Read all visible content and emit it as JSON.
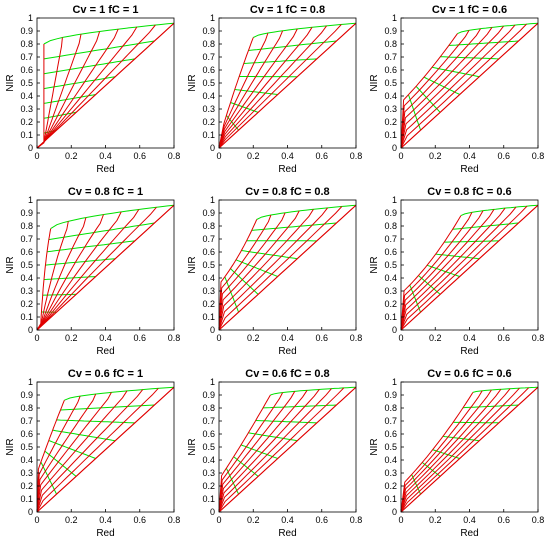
{
  "colors": {
    "green_lines": "#00e000",
    "red_lines": "#e00000",
    "axes": "#000000"
  },
  "chart_data": [
    {
      "type": "line",
      "title": "Cv = 1     fC = 1",
      "xlabel": "Red",
      "ylabel": "NIR",
      "xlim": [
        0,
        0.8
      ],
      "ylim": [
        0,
        1
      ],
      "xticks": [
        "0",
        "0.2",
        "0.4",
        "0.6",
        "0.8"
      ],
      "yticks": [
        "0",
        "0.1",
        "0.2",
        "0.3",
        "0.4",
        "0.5",
        "0.6",
        "0.7",
        "0.8",
        "0.9",
        "1"
      ],
      "soil_line": [
        [
          0.0,
          0.0
        ],
        [
          0.8,
          0.96
        ]
      ],
      "canopy_edge": [
        [
          0.04,
          0.0
        ],
        [
          0.04,
          0.4
        ],
        [
          0.04,
          0.8
        ]
      ],
      "top_point": [
        0.8,
        0.96
      ],
      "grid_n": 7
    },
    {
      "type": "line",
      "title": "Cv = 1     fC = 0.8",
      "xlabel": "Red",
      "ylabel": "NIR",
      "xlim": [
        0,
        0.8
      ],
      "ylim": [
        0,
        1
      ],
      "xticks": [
        "0",
        "0.2",
        "0.4",
        "0.6",
        "0.8"
      ],
      "yticks": [
        "0",
        "0.1",
        "0.2",
        "0.3",
        "0.4",
        "0.5",
        "0.6",
        "0.7",
        "0.8",
        "0.9",
        "1"
      ],
      "soil_line": [
        [
          0.0,
          0.0
        ],
        [
          0.8,
          0.96
        ]
      ],
      "canopy_edge": [
        [
          0.02,
          0.15
        ],
        [
          0.1,
          0.5
        ],
        [
          0.2,
          0.85
        ]
      ],
      "top_point": [
        0.8,
        0.96
      ],
      "grid_n": 7
    },
    {
      "type": "line",
      "title": "Cv = 1     fC = 0.6",
      "xlabel": "Red",
      "ylabel": "NIR",
      "xlim": [
        0,
        0.8
      ],
      "ylim": [
        0,
        1
      ],
      "xticks": [
        "0",
        "0.2",
        "0.4",
        "0.6",
        "0.8"
      ],
      "yticks": [
        "0",
        "0.1",
        "0.2",
        "0.3",
        "0.4",
        "0.5",
        "0.6",
        "0.7",
        "0.8",
        "0.9",
        "1"
      ],
      "soil_line": [
        [
          0.0,
          0.0
        ],
        [
          0.8,
          0.96
        ]
      ],
      "canopy_edge": [
        [
          0.0,
          0.35
        ],
        [
          0.15,
          0.55
        ],
        [
          0.33,
          0.88
        ]
      ],
      "top_point": [
        0.8,
        0.96
      ],
      "grid_n": 7
    },
    {
      "type": "line",
      "title": "Cv = 0.8     fC = 1",
      "xlabel": "Red",
      "ylabel": "NIR",
      "xlim": [
        0,
        0.8
      ],
      "ylim": [
        0,
        1
      ],
      "xticks": [
        "0",
        "0.2",
        "0.4",
        "0.6",
        "0.8"
      ],
      "yticks": [
        "0",
        "0.1",
        "0.2",
        "0.3",
        "0.4",
        "0.5",
        "0.6",
        "0.7",
        "0.8",
        "0.9",
        "1"
      ],
      "soil_line": [
        [
          0.0,
          0.0
        ],
        [
          0.8,
          0.96
        ]
      ],
      "canopy_edge": [
        [
          0.02,
          0.0
        ],
        [
          0.04,
          0.5
        ],
        [
          0.08,
          0.78
        ]
      ],
      "top_point": [
        0.8,
        0.96
      ],
      "grid_n": 7
    },
    {
      "type": "line",
      "title": "Cv = 0.8     fC = 0.8",
      "xlabel": "Red",
      "ylabel": "NIR",
      "xlim": [
        0,
        0.8
      ],
      "ylim": [
        0,
        1
      ],
      "xticks": [
        "0",
        "0.2",
        "0.4",
        "0.6",
        "0.8"
      ],
      "yticks": [
        "0",
        "0.1",
        "0.2",
        "0.3",
        "0.4",
        "0.5",
        "0.6",
        "0.7",
        "0.8",
        "0.9",
        "1"
      ],
      "soil_line": [
        [
          0.0,
          0.0
        ],
        [
          0.8,
          0.96
        ]
      ],
      "canopy_edge": [
        [
          0.0,
          0.35
        ],
        [
          0.12,
          0.55
        ],
        [
          0.22,
          0.85
        ]
      ],
      "top_point": [
        0.8,
        0.96
      ],
      "grid_n": 7
    },
    {
      "type": "line",
      "title": "Cv = 0.8     fC = 0.6",
      "xlabel": "Red",
      "ylabel": "NIR",
      "xlim": [
        0,
        0.8
      ],
      "ylim": [
        0,
        1
      ],
      "xticks": [
        "0",
        "0.2",
        "0.4",
        "0.6",
        "0.8"
      ],
      "yticks": [
        "0",
        "0.1",
        "0.2",
        "0.3",
        "0.4",
        "0.5",
        "0.6",
        "0.7",
        "0.8",
        "0.9",
        "1"
      ],
      "soil_line": [
        [
          0.0,
          0.0
        ],
        [
          0.8,
          0.96
        ]
      ],
      "canopy_edge": [
        [
          0.0,
          0.28
        ],
        [
          0.18,
          0.5
        ],
        [
          0.35,
          0.88
        ]
      ],
      "top_point": [
        0.8,
        0.96
      ],
      "grid_n": 7
    },
    {
      "type": "line",
      "title": "Cv = 0.6     fC = 1",
      "xlabel": "Red",
      "ylabel": "NIR",
      "xlim": [
        0,
        0.8
      ],
      "ylim": [
        0,
        1
      ],
      "xticks": [
        "0",
        "0.2",
        "0.4",
        "0.6",
        "0.8"
      ],
      "yticks": [
        "0",
        "0.1",
        "0.2",
        "0.3",
        "0.4",
        "0.5",
        "0.6",
        "0.7",
        "0.8",
        "0.9",
        "1"
      ],
      "soil_line": [
        [
          0.0,
          0.0
        ],
        [
          0.8,
          0.96
        ]
      ],
      "canopy_edge": [
        [
          0.0,
          0.3
        ],
        [
          0.08,
          0.6
        ],
        [
          0.16,
          0.86
        ]
      ],
      "top_point": [
        0.8,
        0.96
      ],
      "grid_n": 7
    },
    {
      "type": "line",
      "title": "Cv = 0.6     fC = 0.8",
      "xlabel": "Red",
      "ylabel": "NIR",
      "xlim": [
        0,
        0.8
      ],
      "ylim": [
        0,
        1
      ],
      "xticks": [
        "0",
        "0.2",
        "0.4",
        "0.6",
        "0.8"
      ],
      "yticks": [
        "0",
        "0.1",
        "0.2",
        "0.3",
        "0.4",
        "0.5",
        "0.6",
        "0.7",
        "0.8",
        "0.9",
        "1"
      ],
      "soil_line": [
        [
          0.0,
          0.0
        ],
        [
          0.8,
          0.96
        ]
      ],
      "canopy_edge": [
        [
          0.0,
          0.25
        ],
        [
          0.15,
          0.55
        ],
        [
          0.3,
          0.9
        ]
      ],
      "top_point": [
        0.8,
        0.96
      ],
      "grid_n": 7
    },
    {
      "type": "line",
      "title": "Cv = 0.6     fC = 0.6",
      "xlabel": "Red",
      "ylabel": "NIR",
      "xlim": [
        0,
        0.8
      ],
      "ylim": [
        0,
        1
      ],
      "xticks": [
        "0",
        "0.2",
        "0.4",
        "0.6",
        "0.8"
      ],
      "yticks": [
        "0",
        "0.1",
        "0.2",
        "0.3",
        "0.4",
        "0.5",
        "0.6",
        "0.7",
        "0.8",
        "0.9",
        "1"
      ],
      "soil_line": [
        [
          0.0,
          0.0
        ],
        [
          0.8,
          0.96
        ]
      ],
      "canopy_edge": [
        [
          0.0,
          0.2
        ],
        [
          0.22,
          0.5
        ],
        [
          0.42,
          0.92
        ]
      ],
      "top_point": [
        0.8,
        0.96
      ],
      "grid_n": 7
    }
  ]
}
